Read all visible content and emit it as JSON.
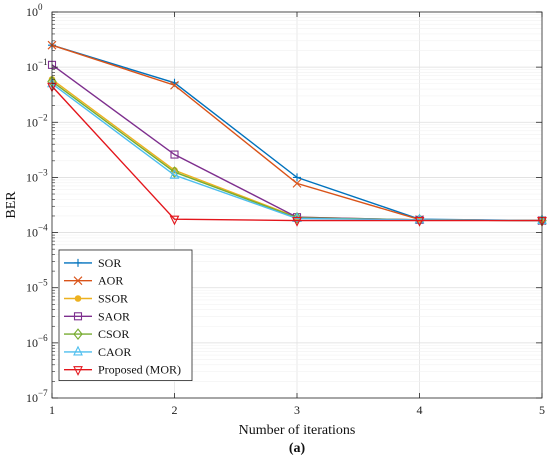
{
  "chart_data": {
    "type": "line",
    "xlabel": "Number of iterations",
    "ylabel": "BER",
    "caption": "(a)",
    "x": [
      1,
      2,
      3,
      4,
      5
    ],
    "x_ticks": [
      "1",
      "2",
      "3",
      "4",
      "5"
    ],
    "ylim": [
      1e-07,
      1
    ],
    "y_scale": "log",
    "y_ticks": [
      {
        "base": "10",
        "exp": "0"
      },
      {
        "base": "10",
        "exp": "−1"
      },
      {
        "base": "10",
        "exp": "−2"
      },
      {
        "base": "10",
        "exp": "−3"
      },
      {
        "base": "10",
        "exp": "−4"
      },
      {
        "base": "10",
        "exp": "−5"
      },
      {
        "base": "10",
        "exp": "−6"
      },
      {
        "base": "10",
        "exp": "−7"
      }
    ],
    "grid": true,
    "legend_position": "bottom-left",
    "series": [
      {
        "name": "SOR",
        "color": "#0072BD",
        "marker": "plus",
        "values": [
          0.25,
          0.052,
          0.001,
          0.000175,
          0.000165
        ]
      },
      {
        "name": "AOR",
        "color": "#D95319",
        "marker": "x",
        "values": [
          0.25,
          0.047,
          0.00078,
          0.000172,
          0.000165
        ]
      },
      {
        "name": "SSOR",
        "color": "#EDB120",
        "marker": "dot",
        "values": [
          0.06,
          0.00135,
          0.00019,
          0.00017,
          0.000165
        ]
      },
      {
        "name": "SAOR",
        "color": "#7E2F8E",
        "marker": "square",
        "values": [
          0.11,
          0.0026,
          0.00019,
          0.00017,
          0.000165
        ]
      },
      {
        "name": "CSOR",
        "color": "#77AC30",
        "marker": "diamond",
        "values": [
          0.055,
          0.00125,
          0.000185,
          0.00017,
          0.000165
        ]
      },
      {
        "name": "CAOR",
        "color": "#4DBEEE",
        "marker": "triangle-up",
        "values": [
          0.05,
          0.0011,
          0.00018,
          0.00017,
          0.000165
        ]
      },
      {
        "name": "Proposed (MOR)",
        "color": "#E3161C",
        "marker": "triangle-down",
        "values": [
          0.045,
          0.000175,
          0.000165,
          0.000165,
          0.000165
        ]
      }
    ]
  }
}
